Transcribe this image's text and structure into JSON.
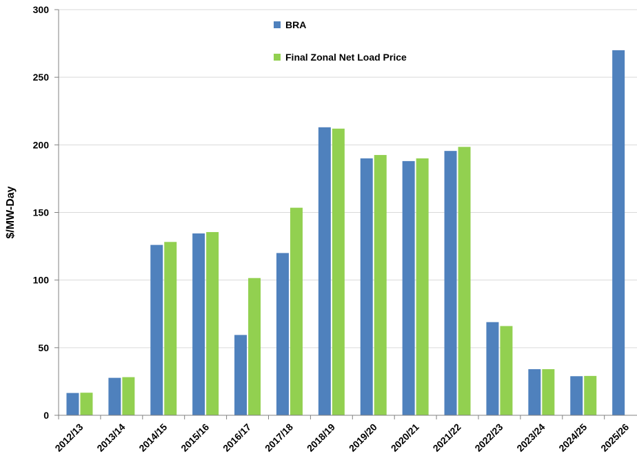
{
  "chart_data": {
    "type": "bar",
    "categories": [
      "2012/13",
      "2013/14",
      "2014/15",
      "2015/16",
      "2016/17",
      "2017/18",
      "2018/19",
      "2019/20",
      "2020/21",
      "2021/22",
      "2022/23",
      "2023/24",
      "2024/25",
      "2025/26"
    ],
    "series": [
      {
        "name": "BRA",
        "color": "#4f81bd",
        "values": [
          16.5,
          27.7,
          126,
          134.5,
          59.4,
          120,
          213,
          190,
          188,
          195.5,
          68.9,
          34.1,
          28.9,
          270
        ]
      },
      {
        "name": "Final Zonal Net Load Price",
        "color": "#92d050",
        "values": [
          16.7,
          28.2,
          128.2,
          135.5,
          101.5,
          153.5,
          212,
          192.5,
          190,
          198.5,
          66,
          34.1,
          29.1,
          null
        ]
      }
    ],
    "ylabel": "$/MW-Day",
    "ylim": [
      0,
      300
    ],
    "yticks": [
      0,
      50,
      100,
      150,
      200,
      250,
      300
    ],
    "grid": true,
    "legend": "top-center"
  }
}
